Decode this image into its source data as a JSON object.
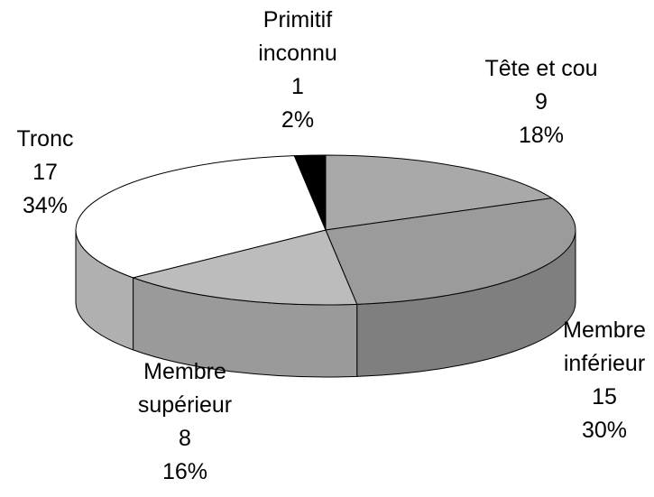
{
  "chart_data": {
    "type": "pie",
    "view": "3d",
    "categories": [
      "Tête et cou",
      "Membre inférieur",
      "Membre supérieur",
      "Tronc",
      "Primitif inconnu"
    ],
    "counts": [
      9,
      15,
      8,
      17,
      1
    ],
    "values": [
      18,
      30,
      16,
      34,
      2
    ],
    "value_labels": [
      "18%",
      "30%",
      "16%",
      "34%",
      "2%"
    ],
    "colors": [
      "#a9a9a9",
      "#9b9b9b",
      "#bcbcbc",
      "#ffffff",
      "#000000"
    ]
  }
}
